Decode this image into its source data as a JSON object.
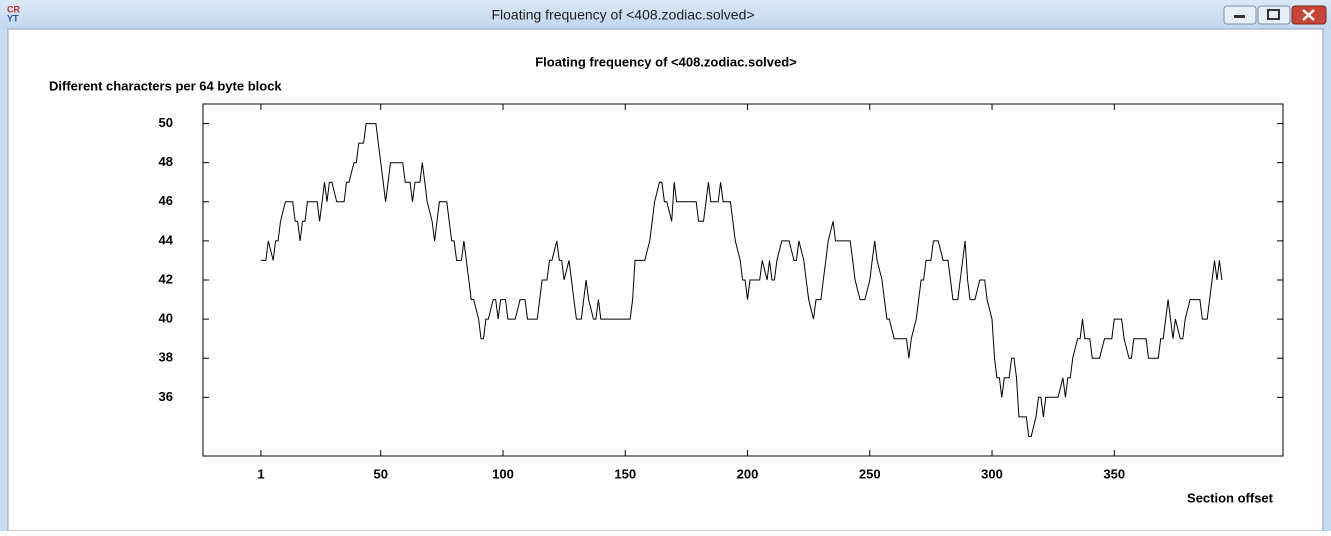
{
  "window": {
    "title": "Floating frequency of <408.zodiac.solved>"
  },
  "chart_data": {
    "type": "line",
    "title": "Floating frequency of <408.zodiac.solved>",
    "y_label": "Different characters per 64 byte block",
    "x_label": "Section offset",
    "xlim": [
      -22.7,
      419
    ],
    "xticks": [
      1,
      50,
      100,
      150,
      200,
      250,
      300,
      350
    ],
    "ylim": [
      33,
      51
    ],
    "yticks": [
      36,
      38,
      40,
      42,
      44,
      46,
      48,
      50
    ],
    "grid": false,
    "series": [
      {
        "name": "Floating frequency",
        "color": "#000000",
        "x": [
          1,
          3,
          4,
          6,
          7,
          8,
          9,
          11,
          14,
          15,
          16,
          17,
          18,
          19,
          20,
          24,
          25,
          26,
          27,
          28,
          29,
          30,
          32,
          35,
          36,
          37,
          39,
          40,
          41,
          43,
          44,
          48,
          49,
          50,
          51,
          52,
          53,
          54,
          59,
          60,
          62,
          63,
          64,
          66,
          67,
          68,
          69,
          71,
          72,
          73,
          74,
          77,
          78,
          79,
          80,
          81,
          83,
          84,
          86,
          87,
          88,
          90,
          91,
          92,
          93,
          94,
          96,
          97,
          98,
          99,
          101,
          102,
          105,
          107,
          109,
          110,
          114,
          115,
          116,
          118,
          119,
          120,
          122,
          123,
          124,
          125,
          127,
          128,
          129,
          130,
          132,
          133,
          134,
          135,
          137,
          138,
          139,
          140,
          152,
          153,
          154,
          158,
          160,
          161,
          162,
          164,
          165,
          166,
          167,
          169,
          170,
          171,
          179,
          180,
          182,
          183,
          184,
          185,
          188,
          189,
          190,
          193,
          194,
          195,
          197,
          198,
          199,
          200,
          201,
          205,
          206,
          208,
          209,
          210,
          211,
          212,
          214,
          217,
          219,
          220,
          221,
          223,
          224,
          225,
          227,
          228,
          230,
          231,
          232,
          233,
          235,
          236,
          242,
          243,
          244,
          246,
          248,
          250,
          251,
          252,
          253,
          255,
          256,
          257,
          258,
          260,
          265,
          266,
          267,
          269,
          270,
          271,
          272,
          273,
          275,
          276,
          278,
          280,
          282,
          283,
          284,
          286,
          287,
          288,
          289,
          290,
          291,
          293,
          295,
          297,
          298,
          300,
          301,
          302,
          303,
          304,
          305,
          307,
          308,
          309,
          310,
          311,
          314,
          315,
          316,
          318,
          319,
          320,
          321,
          322,
          327,
          329,
          330,
          331,
          332,
          333,
          335,
          336,
          337,
          338,
          340,
          341,
          344,
          346,
          349,
          350,
          353,
          354,
          356,
          357,
          358,
          363,
          364,
          368,
          369,
          370,
          372,
          373,
          374,
          375,
          377,
          378,
          379,
          381,
          385,
          386,
          388,
          389,
          390,
          391,
          392,
          393,
          394
        ],
        "values": [
          43,
          43,
          44,
          43,
          44,
          44,
          45,
          46,
          46,
          45,
          45,
          44,
          45,
          45,
          46,
          46,
          45,
          46,
          47,
          46,
          47,
          47,
          46,
          46,
          47,
          47,
          48,
          48,
          49,
          49,
          50,
          50,
          49,
          48,
          47,
          46,
          47,
          48,
          48,
          47,
          47,
          46,
          47,
          47,
          48,
          47,
          46,
          45,
          44,
          45,
          46,
          46,
          45,
          44,
          44,
          43,
          43,
          44,
          42,
          41,
          41,
          40,
          39,
          39,
          40,
          40,
          41,
          41,
          40,
          41,
          41,
          40,
          40,
          41,
          41,
          40,
          40,
          41,
          42,
          42,
          43,
          43,
          44,
          43,
          43,
          42,
          43,
          42,
          41,
          40,
          40,
          41,
          42,
          41,
          40,
          40,
          41,
          40,
          40,
          41,
          43,
          43,
          44,
          45,
          46,
          47,
          47,
          46,
          46,
          45,
          47,
          46,
          46,
          45,
          45,
          46,
          47,
          46,
          46,
          47,
          46,
          46,
          45,
          44,
          43,
          42,
          42,
          41,
          42,
          42,
          43,
          42,
          43,
          42,
          42,
          43,
          44,
          44,
          43,
          43,
          44,
          43,
          42,
          41,
          40,
          41,
          41,
          42,
          43,
          44,
          45,
          44,
          44,
          43,
          42,
          41,
          41,
          42,
          43,
          44,
          43,
          42,
          41,
          40,
          40,
          39,
          39,
          38,
          39,
          40,
          41,
          42,
          42,
          43,
          43,
          44,
          44,
          43,
          43,
          42,
          41,
          41,
          42,
          43,
          44,
          42,
          41,
          41,
          42,
          42,
          41,
          40,
          38,
          37,
          37,
          36,
          37,
          37,
          38,
          38,
          37,
          35,
          35,
          34,
          34,
          35,
          36,
          36,
          35,
          36,
          36,
          37,
          36,
          37,
          37,
          38,
          39,
          39,
          40,
          39,
          39,
          38,
          38,
          39,
          39,
          40,
          40,
          39,
          38,
          38,
          39,
          39,
          38,
          38,
          39,
          39,
          41,
          40,
          39,
          40,
          39,
          39,
          40,
          41,
          41,
          40,
          40,
          41,
          42,
          43,
          42,
          43,
          42
        ]
      }
    ]
  }
}
